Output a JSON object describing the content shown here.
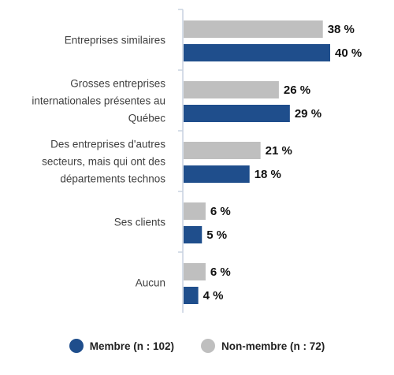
{
  "chart_data": {
    "type": "bar",
    "orientation": "horizontal",
    "categories": [
      [
        "Entreprises similaires"
      ],
      [
        "Grosses entreprises",
        "internationales présentes au",
        "Québec"
      ],
      [
        "Des entreprises d'autres",
        "secteurs, mais qui ont des",
        "départements technos"
      ],
      [
        "Ses clients"
      ],
      [
        "Aucun"
      ]
    ],
    "series": [
      {
        "name": "Non-membre (n : 72)",
        "values": [
          38,
          26,
          21,
          6,
          6
        ],
        "labels": [
          "38 %",
          "26 %",
          "21 %",
          "6 %",
          "6 %"
        ],
        "color": "#bfbfbf"
      },
      {
        "name": "Membre (n : 102)",
        "values": [
          40,
          29,
          18,
          5,
          4
        ],
        "labels": [
          "40 %",
          "29 %",
          "18 %",
          "5 %",
          "4 %"
        ],
        "color": "#1f4e8c"
      }
    ],
    "xlim": [
      0,
      40
    ],
    "grid": false,
    "legend_position": "bottom",
    "legend": [
      {
        "label": "Membre (n : 102)",
        "color": "#1f4e8c"
      },
      {
        "label": "Non-membre (n : 72)",
        "color": "#bfbfbf"
      }
    ]
  },
  "colors": {
    "axis": "#c8d2e0"
  }
}
